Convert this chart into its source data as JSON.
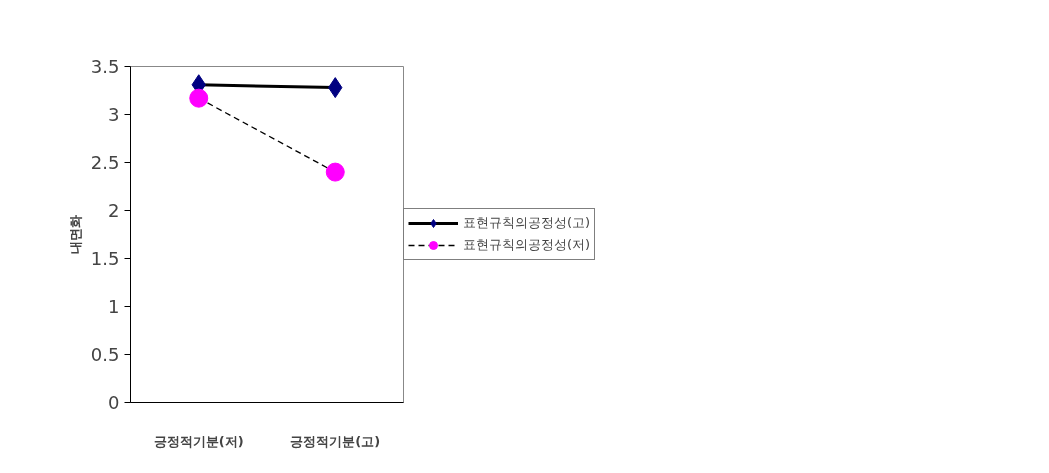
{
  "chart_data": {
    "type": "line",
    "ylabel": "내면화",
    "categories": [
      "긍정적기분(저)",
      "긍정적기분(고)"
    ],
    "series": [
      {
        "name": "표현규칙의공정성(고)",
        "color": "#000080",
        "values": [
          3.31,
          3.28
        ],
        "marker": "diamond",
        "line_style": "solid"
      },
      {
        "name": "표현규칙의공정성(저)",
        "color": "#ff00ff",
        "values": [
          3.17,
          2.4
        ],
        "marker": "circle",
        "line_style": "dashed"
      }
    ],
    "ylim": [
      0,
      3.5
    ],
    "yticks": [
      0,
      0.5,
      1,
      1.5,
      2,
      2.5,
      3,
      3.5
    ],
    "grid": false,
    "legend": "right"
  }
}
